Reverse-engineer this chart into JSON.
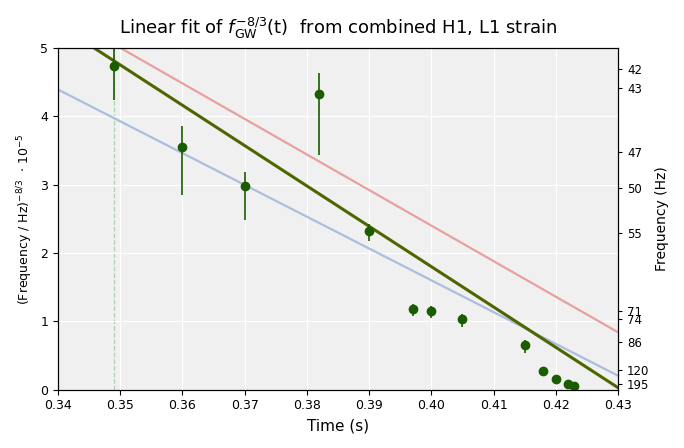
{
  "title": "Linear fit of f_GW^{-8/3}(t)  from combined H1, L1 strain",
  "xlabel": "Time (s)",
  "xlim": [
    0.34,
    0.43
  ],
  "ylim": [
    0.0,
    5.0
  ],
  "data_x": [
    0.349,
    0.36,
    0.37,
    0.382,
    0.39,
    0.397,
    0.4,
    0.405,
    0.415,
    0.418,
    0.42,
    0.422,
    0.423
  ],
  "data_y": [
    4.73,
    3.55,
    2.98,
    4.33,
    2.32,
    1.18,
    1.15,
    1.03,
    0.65,
    0.28,
    0.16,
    0.08,
    0.05
  ],
  "data_yerr_low": [
    0.5,
    0.7,
    0.5,
    0.9,
    0.15,
    0.1,
    0.1,
    0.12,
    0.12,
    0.05,
    0.03,
    0.02,
    0.01
  ],
  "data_yerr_high": [
    0.3,
    0.3,
    0.2,
    0.3,
    0.1,
    0.07,
    0.07,
    0.08,
    0.08,
    0.04,
    0.02,
    0.01,
    0.01
  ],
  "fit_line_green": {
    "slope": -59.0,
    "intercept": 25.4
  },
  "fit_line_pink": {
    "slope": -52.0,
    "intercept": 23.2
  },
  "fit_line_blue": {
    "slope": -46.5,
    "intercept": 20.2
  },
  "right_axis_freqs": [
    42,
    43,
    47,
    50,
    55,
    71,
    74,
    86,
    120,
    195
  ],
  "background_color": "#f0f0f0",
  "data_color": "#1a5c00",
  "green_line_color": "#4d6600",
  "pink_line_color": "#e8a0a0",
  "blue_line_color": "#aabedd",
  "vline_x": 0.349,
  "vline_color": "#99cc99"
}
